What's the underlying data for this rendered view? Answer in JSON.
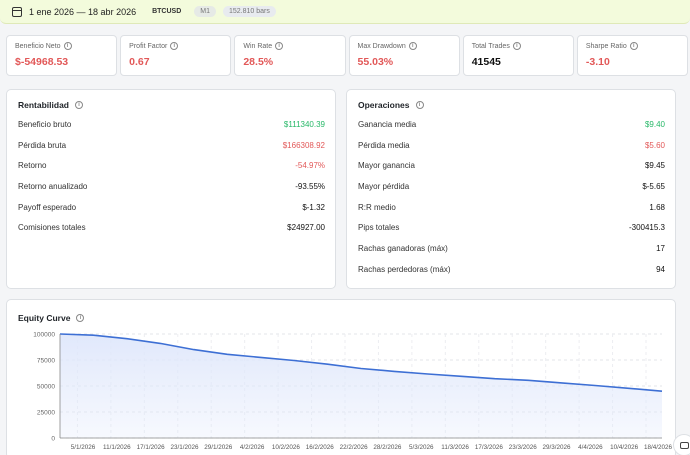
{
  "topbar": {
    "date_range": "1 ene 2026 — 18 abr 2026",
    "symbol": "BTCUSD",
    "timeframe": "M1",
    "bars": "152.810 bars"
  },
  "kpis": [
    {
      "label": "Beneficio Neto",
      "value": "$-54968.53",
      "tone": "neg"
    },
    {
      "label": "Profit Factor",
      "value": "0.67",
      "tone": "neg"
    },
    {
      "label": "Win Rate",
      "value": "28.5%",
      "tone": "neg"
    },
    {
      "label": "Max Drawdown",
      "value": "55.03%",
      "tone": "neg"
    },
    {
      "label": "Total Trades",
      "value": "41545",
      "tone": "dark"
    },
    {
      "label": "Sharpe Ratio",
      "value": "-3.10",
      "tone": "neg"
    }
  ],
  "rentabilidad": {
    "title": "Rentabilidad",
    "rows": [
      {
        "label": "Beneficio bruto",
        "value": "$111340.39",
        "tone": "pos"
      },
      {
        "label": "Pérdida bruta",
        "value": "$166308.92",
        "tone": "neg"
      },
      {
        "label": "Retorno",
        "value": "-54.97%",
        "tone": "neg"
      },
      {
        "label": "Retorno anualizado",
        "value": "-93.55%",
        "tone": "dark"
      },
      {
        "label": "Payoff esperado",
        "value": "$-1.32",
        "tone": "dark"
      },
      {
        "label": "Comisiones totales",
        "value": "$24927.00",
        "tone": "dark"
      }
    ]
  },
  "operaciones": {
    "title": "Operaciones",
    "rows": [
      {
        "label": "Ganancia media",
        "value": "$9.40",
        "tone": "pos"
      },
      {
        "label": "Pérdida media",
        "value": "$5.60",
        "tone": "neg"
      },
      {
        "label": "Mayor ganancia",
        "value": "$9.45",
        "tone": "dark"
      },
      {
        "label": "Mayor pérdida",
        "value": "$-5.65",
        "tone": "dark"
      },
      {
        "label": "R:R medio",
        "value": "1.68",
        "tone": "dark"
      },
      {
        "label": "Pips totales",
        "value": "-300415.3",
        "tone": "dark"
      },
      {
        "label": "Rachas ganadoras (máx)",
        "value": "17",
        "tone": "dark"
      },
      {
        "label": "Rachas perdedoras (máx)",
        "value": "94",
        "tone": "dark"
      }
    ]
  },
  "equity": {
    "title": "Equity Curve"
  },
  "chart_data": {
    "type": "area",
    "title": "Equity Curve",
    "xlabel": "",
    "ylabel": "",
    "ylim": [
      0,
      100000
    ],
    "yticks": [
      0,
      25000,
      50000,
      75000,
      100000
    ],
    "ytick_labels": [
      "0",
      "25000",
      "50000",
      "75000",
      "100000"
    ],
    "xtick_labels": [
      "5/1/2026",
      "11/1/2026",
      "17/1/2026",
      "23/1/2026",
      "29/1/2026",
      "4/2/2026",
      "10/2/2026",
      "16/2/2026",
      "22/2/2026",
      "28/2/2026",
      "5/3/2026",
      "11/3/2026",
      "17/3/2026",
      "23/3/2026",
      "29/3/2026",
      "4/4/2026",
      "10/4/2026",
      "18/4/2026"
    ],
    "grid": true,
    "series": [
      {
        "color": "#3d6fd4",
        "x": [
          "1/1/2026",
          "5/1/2026",
          "11/1/2026",
          "17/1/2026",
          "23/1/2026",
          "29/1/2026",
          "4/2/2026",
          "10/2/2026",
          "16/2/2026",
          "22/2/2026",
          "28/2/2026",
          "5/3/2026",
          "11/3/2026",
          "17/3/2026",
          "23/3/2026",
          "29/3/2026",
          "4/4/2026",
          "10/4/2026",
          "18/4/2026"
        ],
        "values": [
          100000,
          98800,
          95500,
          91000,
          85000,
          80500,
          77500,
          74500,
          71000,
          66800,
          64000,
          61500,
          59300,
          57000,
          55500,
          53000,
          50500,
          47800,
          45000
        ]
      }
    ]
  },
  "colors": {
    "negative": "#e25858",
    "positive": "#27b868",
    "line": "#3d6fd4",
    "fill": "#dfe7fb"
  }
}
